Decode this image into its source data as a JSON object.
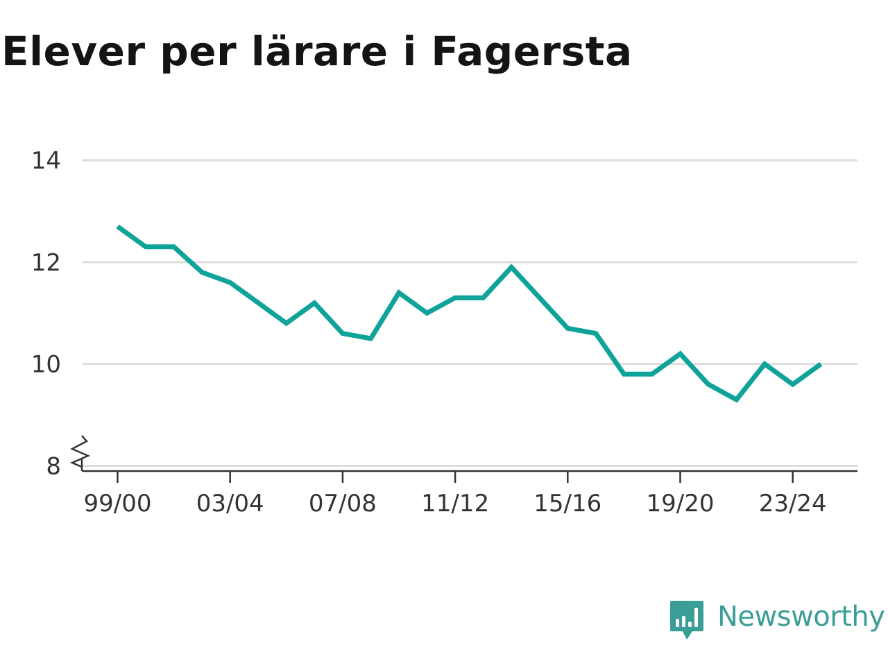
{
  "title": "Elever per lärare i Fagersta",
  "brand": {
    "name": "Newsworthy",
    "icon": "newsworthy-logo-icon",
    "color": "#3a9e96"
  },
  "chart_data": {
    "type": "line",
    "title": "Elever per lärare i Fagersta",
    "xlabel": "",
    "ylabel": "",
    "x_tick_labels": [
      "99/00",
      "03/04",
      "07/08",
      "11/12",
      "15/16",
      "19/20",
      "23/24"
    ],
    "y_tick_labels": [
      "8",
      "10",
      "12",
      "14"
    ],
    "yticks": [
      8,
      10,
      12,
      14
    ],
    "ylim": [
      8,
      14
    ],
    "axis_break": true,
    "grid": true,
    "line_color": "#0fa39a",
    "series": [
      {
        "x": [
          "99/00",
          "00/01",
          "01/02",
          "02/03",
          "03/04",
          "04/05",
          "05/06",
          "06/07",
          "07/08",
          "08/09",
          "09/10",
          "10/11",
          "11/12",
          "12/13",
          "13/14",
          "14/15",
          "15/16",
          "16/17",
          "17/18",
          "18/19",
          "19/20",
          "20/21",
          "21/22",
          "22/23",
          "23/24",
          "24/25"
        ],
        "values": [
          12.7,
          12.3,
          12.3,
          11.8,
          11.6,
          11.2,
          10.8,
          11.2,
          10.6,
          10.5,
          11.4,
          11.0,
          11.3,
          11.3,
          11.9,
          11.3,
          10.7,
          10.6,
          9.8,
          9.8,
          10.2,
          9.6,
          9.3,
          10.0,
          9.6,
          10.0
        ]
      }
    ]
  }
}
